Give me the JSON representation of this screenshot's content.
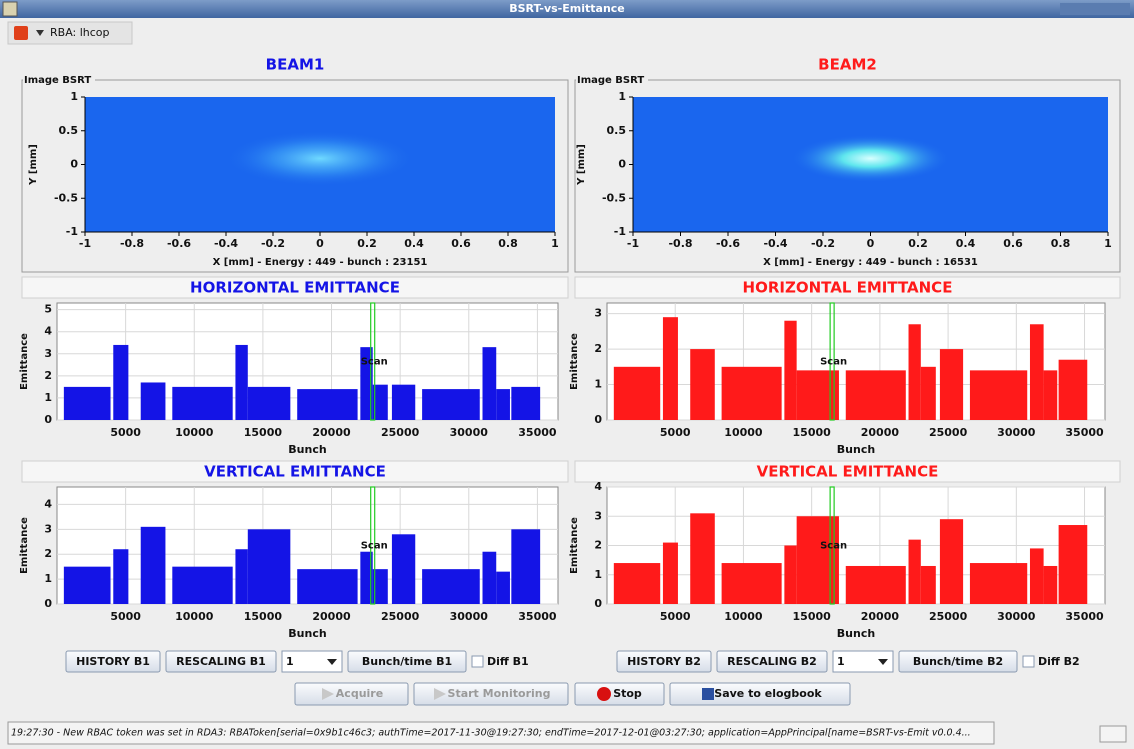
{
  "window": {
    "title": "BSRT-vs-Emittance"
  },
  "toolbar": {
    "rba": "RBA: lhcop"
  },
  "trains": [
    [
      500,
      3900
    ],
    [
      4100,
      5200
    ],
    [
      6100,
      7900
    ],
    [
      8400,
      12800
    ],
    [
      13000,
      13900
    ],
    [
      13900,
      17000
    ],
    [
      17500,
      21900
    ],
    [
      22100,
      23000
    ],
    [
      23000,
      24100
    ],
    [
      24400,
      26100
    ],
    [
      26600,
      30800
    ],
    [
      31000,
      32000
    ],
    [
      32000,
      33000
    ],
    [
      33100,
      35200
    ]
  ],
  "beams": [
    {
      "title": "BEAM1",
      "color": "#1414e6",
      "image": {
        "panel_title": "Image BSRT",
        "y_label": "Y [mm]",
        "x_label": "X [mm] - Energy : 449 - bunch : 23151",
        "xlim": [
          -1,
          1
        ],
        "xticks": [
          -1,
          -0.8,
          -0.6,
          -0.4,
          -0.2,
          0,
          0.2,
          0.4,
          0.6,
          0.8,
          1
        ],
        "ylim": [
          -1,
          1
        ],
        "yticks": [
          -1,
          -0.5,
          0,
          0.5,
          1
        ]
      },
      "horizontal": {
        "title": "HORIZONTAL EMITTANCE",
        "y_label": "Emittance",
        "x_label": "Bunch",
        "scan_label": "Scan",
        "scan_at": 23000,
        "xlim": [
          0,
          36500
        ],
        "xticks": [
          5000,
          10000,
          15000,
          20000,
          25000,
          30000,
          35000
        ],
        "ylim": [
          0,
          5.3
        ],
        "yticks": [
          0,
          1,
          2,
          3,
          4,
          5
        ],
        "values": [
          1.5,
          3.4,
          1.7,
          1.5,
          3.4,
          1.5,
          1.4,
          3.3,
          1.6,
          1.6,
          1.4,
          3.3,
          1.4,
          1.5
        ]
      },
      "vertical": {
        "title": "VERTICAL EMITTANCE",
        "y_label": "Emittance",
        "x_label": "Bunch",
        "scan_label": "Scan",
        "scan_at": 23000,
        "xlim": [
          0,
          36500
        ],
        "xticks": [
          5000,
          10000,
          15000,
          20000,
          25000,
          30000,
          35000
        ],
        "ylim": [
          0,
          4.7
        ],
        "yticks": [
          0,
          1,
          2,
          3,
          4
        ],
        "values": [
          1.5,
          2.2,
          3.1,
          1.5,
          2.2,
          3.0,
          1.4,
          2.1,
          1.4,
          2.8,
          1.4,
          2.1,
          1.3,
          3.0
        ]
      },
      "controls": {
        "history": "HISTORY B1",
        "rescaling": "RESCALING B1",
        "selector": "1",
        "bunch_time": "Bunch/time B1",
        "diff": "Diff B1"
      }
    },
    {
      "title": "BEAM2",
      "color": "#ff1a1a",
      "image": {
        "panel_title": "Image BSRT",
        "y_label": "Y [mm]",
        "x_label": "X [mm] - Energy : 449 - bunch : 16531",
        "xlim": [
          -1,
          1
        ],
        "xticks": [
          -1,
          -0.8,
          -0.6,
          -0.4,
          -0.2,
          0,
          0.2,
          0.4,
          0.6,
          0.8,
          1
        ],
        "ylim": [
          -1,
          1
        ],
        "yticks": [
          -1,
          -0.5,
          0,
          0.5,
          1
        ]
      },
      "horizontal": {
        "title": "HORIZONTAL EMITTANCE",
        "y_label": "Emittance",
        "x_label": "Bunch",
        "scan_label": "Scan",
        "scan_at": 16500,
        "xlim": [
          0,
          36500
        ],
        "xticks": [
          5000,
          10000,
          15000,
          20000,
          25000,
          30000,
          35000
        ],
        "ylim": [
          0,
          3.3
        ],
        "yticks": [
          0,
          1,
          2,
          3
        ],
        "values": [
          1.5,
          2.9,
          2.0,
          1.5,
          2.8,
          1.4,
          1.4,
          2.7,
          1.5,
          2.0,
          1.4,
          2.7,
          1.4,
          1.7
        ]
      },
      "vertical": {
        "title": "VERTICAL EMITTANCE",
        "y_label": "Emittance",
        "x_label": "Bunch",
        "scan_label": "Scan",
        "scan_at": 16500,
        "xlim": [
          0,
          36500
        ],
        "xticks": [
          5000,
          10000,
          15000,
          20000,
          25000,
          30000,
          35000
        ],
        "ylim": [
          0,
          4
        ],
        "yticks": [
          0,
          1,
          2,
          3,
          4
        ],
        "values": [
          1.4,
          2.1,
          3.1,
          1.4,
          2.0,
          3.0,
          1.3,
          2.2,
          1.3,
          2.9,
          1.4,
          1.9,
          1.3,
          2.7
        ]
      },
      "controls": {
        "history": "HISTORY B2",
        "rescaling": "RESCALING B2",
        "selector": "1",
        "bunch_time": "Bunch/time B2",
        "diff": "Diff B2"
      }
    }
  ],
  "buttons": {
    "acquire": "Acquire",
    "start_monitoring": "Start Monitoring",
    "stop": "Stop",
    "save": "Save to elogbook"
  },
  "status": "19:27:30 - New RBAC token was set in RDA3: RBAToken[serial=0x9b1c46c3; authTime=2017-11-30@19:27:30; endTime=2017-12-01@03:27:30; application=AppPrincipal[name=BSRT-vs-Emit v0.0.4..."
}
